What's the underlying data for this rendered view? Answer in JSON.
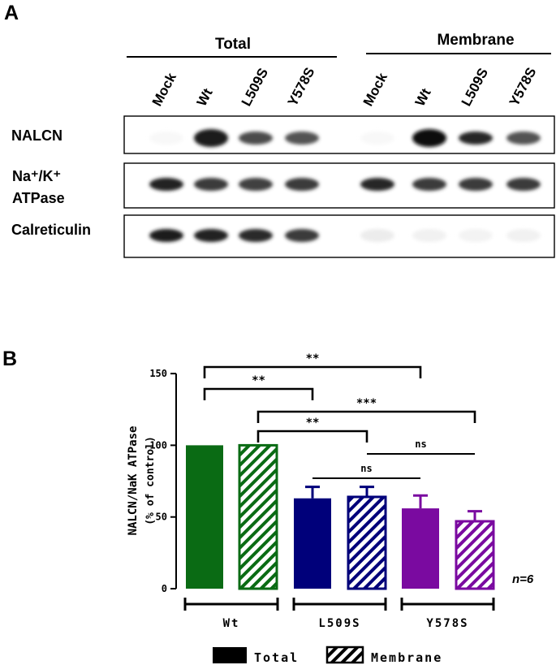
{
  "panel_a": {
    "label": "A",
    "group_titles": [
      "Total",
      "Membrane"
    ],
    "lanes": [
      "Mock",
      "Wt",
      "L509S",
      "Y578S",
      "Mock",
      "Wt",
      "L509S",
      "Y578S"
    ],
    "rows": [
      {
        "label_lines": [
          "NALCN"
        ],
        "intensities": [
          0.03,
          0.95,
          0.75,
          0.72,
          0.03,
          1.0,
          0.9,
          0.72
        ]
      },
      {
        "label_lines": [
          "Na⁺/K⁺",
          "ATPase"
        ],
        "intensities": [
          0.92,
          0.82,
          0.8,
          0.82,
          0.9,
          0.82,
          0.82,
          0.82
        ]
      },
      {
        "label_lines": [
          "Calreticulin"
        ],
        "intensities": [
          0.95,
          0.92,
          0.88,
          0.82,
          0.08,
          0.06,
          0.05,
          0.06
        ]
      }
    ]
  },
  "panel_b": {
    "label": "B",
    "n_label": "n=6"
  },
  "chart_data": {
    "type": "bar",
    "ylabel_lines": [
      "NALCN/NaK ATPase",
      "(% of control)"
    ],
    "ylim": [
      0,
      150
    ],
    "yticks": [
      0,
      50,
      100,
      150
    ],
    "groups": [
      "Wt",
      "L509S",
      "Y578S"
    ],
    "series": [
      {
        "name": "Total",
        "values": [
          100,
          63,
          56
        ],
        "errors": [
          0,
          8,
          9
        ]
      },
      {
        "name": "Membrane",
        "values": [
          100,
          64,
          47
        ],
        "errors": [
          0,
          7,
          7
        ]
      }
    ],
    "bar_colors": [
      "#0a6b14",
      "#0a6b14",
      "#00007a",
      "#00007a",
      "#7a0aa0",
      "#7a0aa0"
    ],
    "significance": [
      {
        "bars": [
          0,
          2
        ],
        "label": "**"
      },
      {
        "bars": [
          0,
          4
        ],
        "label": "**"
      },
      {
        "bars": [
          1,
          3
        ],
        "label": "**"
      },
      {
        "bars": [
          1,
          5
        ],
        "label": "***"
      },
      {
        "bars": [
          2,
          4
        ],
        "label": "ns"
      },
      {
        "bars": [
          3,
          5
        ],
        "label": "ns"
      }
    ],
    "legend": {
      "position": "bottom",
      "items": [
        "Total",
        "Membrane"
      ]
    }
  }
}
